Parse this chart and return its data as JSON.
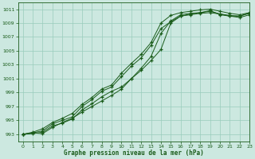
{
  "background_color": "#cce8e0",
  "grid_color": "#99ccbb",
  "line_color": "#1a5c1a",
  "xlabel": "Graphe pression niveau de la mer (hPa)",
  "xlim": [
    -0.5,
    23
  ],
  "ylim": [
    992,
    1012
  ],
  "yticks": [
    993,
    995,
    997,
    999,
    1001,
    1003,
    1005,
    1007,
    1009,
    1011
  ],
  "xticks": [
    0,
    1,
    2,
    3,
    4,
    5,
    6,
    7,
    8,
    9,
    10,
    11,
    12,
    13,
    14,
    15,
    16,
    17,
    18,
    19,
    20,
    21,
    22,
    23
  ],
  "series": [
    [
      993.0,
      993.2,
      993.1,
      994.0,
      994.7,
      995.3,
      996.2,
      997.0,
      997.8,
      998.6,
      999.5,
      1001.0,
      1002.2,
      1003.6,
      1005.2,
      1009.0,
      1010.0,
      1010.3,
      1010.5,
      1010.8,
      1010.2,
      1010.0,
      1010.0,
      1010.5
    ],
    [
      993.0,
      993.1,
      993.3,
      994.2,
      994.6,
      995.2,
      996.5,
      997.4,
      998.4,
      999.2,
      999.8,
      1001.0,
      1002.5,
      1004.2,
      1007.5,
      1009.3,
      1010.2,
      1010.4,
      1010.5,
      1010.7,
      1010.3,
      1010.1,
      1010.0,
      1010.4
    ],
    [
      993.0,
      993.2,
      993.5,
      994.5,
      995.0,
      995.5,
      997.0,
      998.0,
      999.2,
      999.8,
      1001.3,
      1002.8,
      1004.0,
      1005.8,
      1008.2,
      1009.2,
      1010.0,
      1010.2,
      1010.4,
      1010.5,
      1010.3,
      1010.0,
      1009.8,
      1010.2
    ],
    [
      993.0,
      993.3,
      993.8,
      994.7,
      995.3,
      996.0,
      997.3,
      998.3,
      999.5,
      1000.1,
      1001.8,
      1003.2,
      1004.5,
      1006.2,
      1009.0,
      1010.1,
      1010.5,
      1010.7,
      1010.9,
      1011.0,
      1010.7,
      1010.4,
      1010.2,
      1010.5
    ]
  ]
}
